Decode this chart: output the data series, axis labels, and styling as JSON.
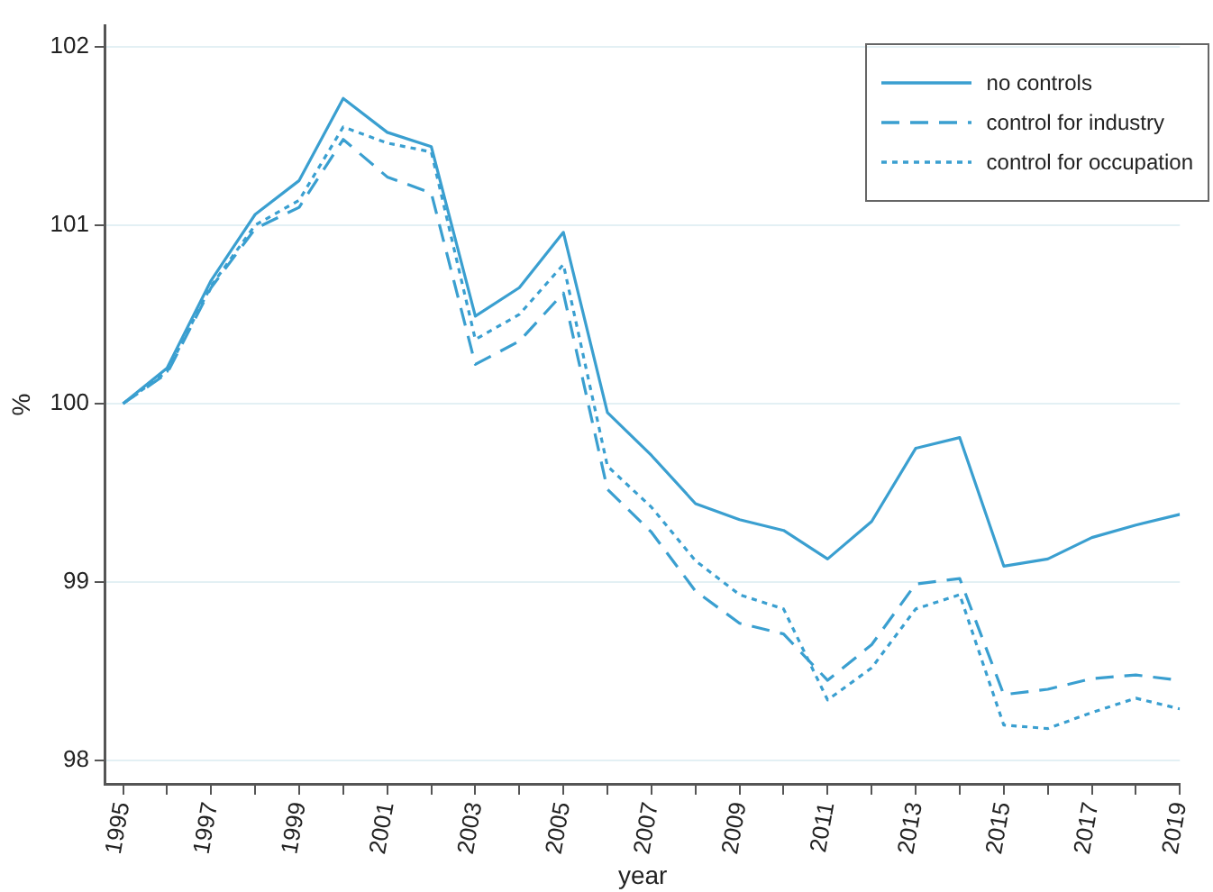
{
  "chart_data": {
    "type": "line",
    "xlabel": "year",
    "ylabel": "%",
    "x": [
      1995,
      1996,
      1997,
      1998,
      1999,
      2000,
      2001,
      2002,
      2003,
      2004,
      2005,
      2006,
      2007,
      2008,
      2009,
      2010,
      2011,
      2012,
      2013,
      2014,
      2015,
      2016,
      2017,
      2018,
      2019
    ],
    "series": [
      {
        "name": "no controls",
        "color": "#3a9fd0",
        "line_style": "solid",
        "values": [
          100,
          100.2,
          100.69,
          101.06,
          101.25,
          101.71,
          101.52,
          101.44,
          100.49,
          100.65,
          100.96,
          99.95,
          99.71,
          99.44,
          99.35,
          99.29,
          99.13,
          99.34,
          99.75,
          99.81,
          99.09,
          99.13,
          99.25,
          99.32,
          99.38
        ]
      },
      {
        "name": "control for industry",
        "color": "#3a9fd0",
        "line_style": "dashed",
        "values": [
          100,
          100.17,
          100.65,
          100.98,
          101.1,
          101.48,
          101.27,
          101.18,
          100.22,
          100.35,
          100.62,
          99.52,
          99.28,
          98.95,
          98.77,
          98.71,
          98.45,
          98.65,
          98.99,
          99.02,
          98.37,
          98.4,
          98.46,
          98.48,
          98.45
        ]
      },
      {
        "name": "control for occupation",
        "color": "#3a9fd0",
        "line_style": "dotted",
        "values": [
          100,
          100.18,
          100.66,
          101.0,
          101.14,
          101.55,
          101.46,
          101.41,
          100.36,
          100.5,
          100.78,
          99.65,
          99.42,
          99.12,
          98.93,
          98.85,
          98.34,
          98.52,
          98.85,
          98.93,
          98.2,
          98.18,
          98.27,
          98.35,
          98.29
        ]
      }
    ],
    "xlim": [
      1994.6,
      2019
    ],
    "xticks": [
      1995,
      {
        "value": 1996,
        "label": null
      },
      1997,
      {
        "value": 1998,
        "label": null
      },
      1999,
      {
        "value": 2000,
        "label": null
      },
      2001,
      {
        "value": 2002,
        "label": null
      },
      2003,
      {
        "value": 2004,
        "label": null
      },
      2005,
      {
        "value": 2006,
        "label": null
      },
      2007,
      {
        "value": 2008,
        "label": null
      },
      2009,
      {
        "value": 2010,
        "label": null
      },
      2011,
      {
        "value": 2012,
        "label": null
      },
      2013,
      {
        "value": 2014,
        "label": null
      },
      2015,
      {
        "value": 2016,
        "label": null
      },
      2017,
      {
        "value": 2018,
        "label": null
      },
      2019
    ],
    "ylim": [
      97.87,
      102.12
    ],
    "yticks": [
      98,
      99,
      100,
      101,
      102
    ],
    "grid": "y",
    "legend": "top right",
    "marker": "none"
  }
}
